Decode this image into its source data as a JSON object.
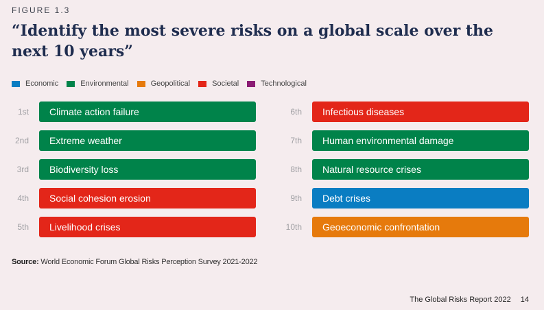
{
  "figure_label": "FIGURE 1.3",
  "chart_data": {
    "type": "table",
    "title": "“Identify the most severe risks on a global scale over the next 10 years”",
    "legend": [
      {
        "name": "Economic",
        "color": "#0a7dc2"
      },
      {
        "name": "Environmental",
        "color": "#00834a"
      },
      {
        "name": "Geopolitical",
        "color": "#e67a0c"
      },
      {
        "name": "Societal",
        "color": "#e32619"
      },
      {
        "name": "Technological",
        "color": "#8b1c74"
      }
    ],
    "rankings": [
      {
        "rank": "1st",
        "risk": "Climate action failure",
        "category": "Environmental"
      },
      {
        "rank": "2nd",
        "risk": "Extreme weather",
        "category": "Environmental"
      },
      {
        "rank": "3rd",
        "risk": "Biodiversity loss",
        "category": "Environmental"
      },
      {
        "rank": "4th",
        "risk": "Social cohesion erosion",
        "category": "Societal"
      },
      {
        "rank": "5th",
        "risk": "Livelihood crises",
        "category": "Societal"
      },
      {
        "rank": "6th",
        "risk": "Infectious diseases",
        "category": "Societal"
      },
      {
        "rank": "7th",
        "risk": "Human environmental damage",
        "category": "Environmental"
      },
      {
        "rank": "8th",
        "risk": "Natural resource crises",
        "category": "Environmental"
      },
      {
        "rank": "9th",
        "risk": "Debt crises",
        "category": "Economic"
      },
      {
        "rank": "10th",
        "risk": "Geoeconomic confrontation",
        "category": "Geopolitical"
      }
    ]
  },
  "source": {
    "label": "Source:",
    "text": " World Economic Forum Global Risks Perception Survey 2021-2022"
  },
  "footer": {
    "report": "The Global Risks Report 2022",
    "page": "14"
  }
}
